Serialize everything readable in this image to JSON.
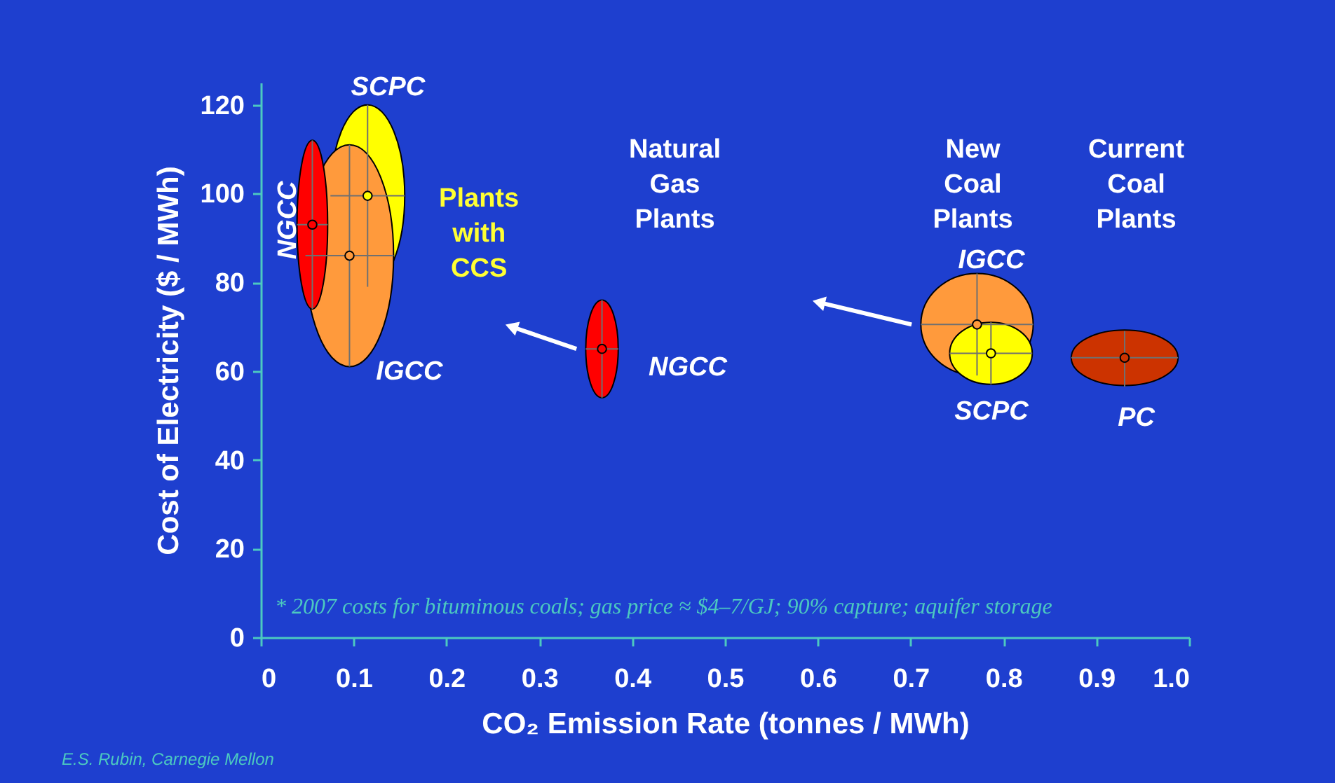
{
  "chart_data": {
    "type": "scatter",
    "xlabel": "CO₂ Emission Rate (tonnes / MWh)",
    "ylabel": "Cost of Electricity ($ / MWh)",
    "xlim": [
      0,
      1
    ],
    "xticks": [
      0,
      0.1,
      0.2,
      0.3,
      0.4,
      0.5,
      0.6,
      0.7,
      0.8,
      0.9,
      {
        "value": 1,
        "label": "1.0"
      }
    ],
    "ylim": [
      0,
      125
    ],
    "yticks": [
      0,
      20,
      40,
      60,
      80,
      100,
      120
    ],
    "grid": false,
    "series": [
      {
        "color": "#ffff00",
        "x": [
          0.115
        ],
        "values": [
          99.5
        ],
        "xerrors": [
          [
            0.075,
            0.155
          ]
        ],
        "errors": [
          [
            79,
            120
          ]
        ]
      },
      {
        "color": "#ff9a3c",
        "x": [
          0.0955
        ],
        "values": [
          86
        ],
        "xerrors": [
          [
            0.048,
            0.143
          ]
        ],
        "errors": [
          [
            61,
            111
          ]
        ]
      },
      {
        "color": "#ff0000",
        "x": [
          0.0555
        ],
        "values": [
          93
        ],
        "xerrors": [
          [
            0.039,
            0.072
          ]
        ],
        "errors": [
          [
            74,
            112
          ]
        ]
      },
      {
        "color": "#ff0000",
        "x": [
          0.3675
        ],
        "values": [
          65
        ],
        "xerrors": [
          [
            0.35,
            0.385
          ]
        ],
        "errors": [
          [
            54,
            76
          ]
        ]
      },
      {
        "color": "#ff9a3c",
        "x": [
          0.7715
        ],
        "values": [
          70.5
        ],
        "xerrors": [
          [
            0.711,
            0.832
          ]
        ],
        "errors": [
          [
            59,
            82
          ]
        ]
      },
      {
        "color": "#ffff00",
        "x": [
          0.7865
        ],
        "values": [
          64
        ],
        "xerrors": [
          [
            0.742,
            0.831
          ]
        ],
        "errors": [
          [
            57,
            71
          ]
        ]
      },
      {
        "color": "#cc3300",
        "x": [
          0.9305
        ],
        "values": [
          63
        ],
        "xerrors": [
          [
            0.873,
            0.988
          ]
        ],
        "errors": [
          [
            56.5,
            69
          ]
        ]
      }
    ],
    "annotations": [
      "SCPC",
      "NGCC",
      "IGCC",
      "Plants with CCS",
      "Natural Gas Plants",
      "NGCC",
      "New Coal Plants",
      "Current Coal Plants",
      "IGCC",
      "SCPC",
      "PC",
      "* 2007 costs for bituminous coals; gas price ≈ $4–7/GJ; 90% capture; aquifer storage",
      "E.S. Rubin, Carnegie Mellon"
    ]
  }
}
